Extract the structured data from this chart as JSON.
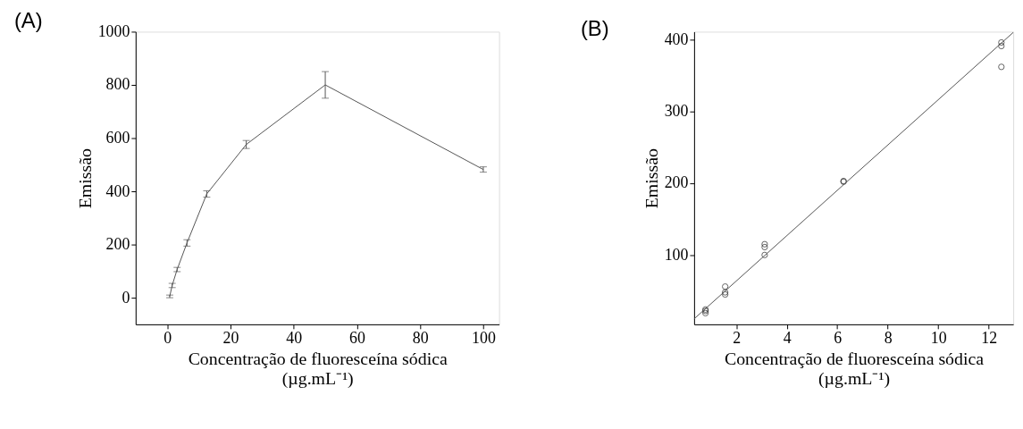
{
  "chart_data": [
    {
      "type": "line",
      "title": "(A)",
      "xlabel": "Concentração de fluoresceína sódica\n(µg.mL⁻¹)",
      "ylabel": "Emissão",
      "x": [
        0.78,
        1.56,
        3.125,
        6.25,
        12.5,
        25,
        50,
        100
      ],
      "values": [
        5,
        46,
        106,
        206,
        390,
        576,
        800,
        482
      ],
      "errors": [
        5,
        8,
        8,
        12,
        12,
        15,
        50,
        10
      ],
      "color": "#555555",
      "marker": "none",
      "line_style": "solid",
      "xlim": [
        -10,
        105
      ],
      "xticks": [
        0,
        20,
        40,
        60,
        80,
        100
      ],
      "ylim": [
        -100,
        1000
      ],
      "yticks": [
        0,
        200,
        400,
        600,
        800,
        1000
      ],
      "grid": false
    },
    {
      "type": "scatter",
      "title": "(B)",
      "xlabel": "Concentração de fluoresceína sódica\n(µg.mL⁻¹)",
      "ylabel": "Emissão",
      "marker": "circle",
      "grid": false,
      "xlim": [
        0.33,
        12.97
      ],
      "xticks": [
        2,
        4,
        6,
        8,
        10,
        12
      ],
      "ylim": [
        3.4,
        411
      ],
      "yticks": [
        100,
        200,
        300,
        400
      ],
      "series": [
        {
          "type": "scatter",
          "color": "#222222",
          "x": [
            0.78,
            0.78,
            0.78,
            1.56,
            1.56,
            1.56,
            3.125,
            3.125,
            3.125,
            6.25,
            6.25,
            12.5,
            12.5,
            12.5
          ],
          "values": [
            24,
            22,
            19,
            56,
            48,
            45,
            115,
            111,
            100,
            203,
            202,
            396,
            391,
            362
          ]
        },
        {
          "type": "line",
          "color": "#555555",
          "marker": "none",
          "x": [
            0.33,
            12.97
          ],
          "values": [
            11,
            410
          ]
        }
      ]
    }
  ]
}
